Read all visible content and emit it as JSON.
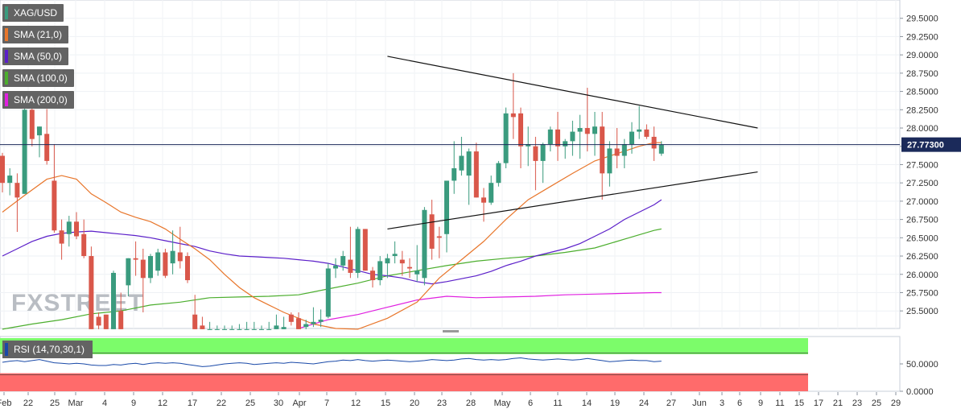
{
  "legend": {
    "symbol": "XAG/USD",
    "sma21": "SMA (21,0)",
    "sma50": "SMA (50,0)",
    "sma100": "SMA (100,0)",
    "sma200": "SMA (200,0)"
  },
  "rsi_label": "RSI (14,70,30,1)",
  "watermark": "FXSTREET",
  "colors": {
    "up": "#3a9b7e",
    "down": "#d9574a",
    "sma21": "#e8762b",
    "sma50": "#5b1fc9",
    "sma100": "#4cae2e",
    "sma200": "#e020e0",
    "rsi": "#1a4aa8",
    "rsi_over": "#7cfc6a",
    "rsi_under": "#ff6b6b",
    "price_line": "#1b2a5a"
  },
  "chart_data": {
    "type": "candlestick",
    "instrument": "XAG/USD",
    "price_label": "27.77300",
    "current_price": 27.773,
    "ylim": [
      25.26,
      29.75
    ],
    "y_ticks": [
      "29.5000",
      "29.2500",
      "29.0000",
      "28.7500",
      "28.5000",
      "28.2500",
      "28.0000",
      "27.7500",
      "27.5000",
      "27.2500",
      "27.0000",
      "26.7500",
      "26.5000",
      "26.2500",
      "26.0000",
      "25.7500",
      "25.5000"
    ],
    "x_ticks": [
      "Feb",
      "22",
      "25",
      "Mar",
      "4",
      "9",
      "12",
      "17",
      "22",
      "25",
      "30",
      "Apr",
      "7",
      "12",
      "15",
      "20",
      "23",
      "28",
      "May",
      "6",
      "11",
      "14",
      "19",
      "24",
      "27",
      "Jun",
      "3",
      "6",
      "9",
      "11",
      "15",
      "17",
      "21",
      "23",
      "25",
      "29"
    ],
    "ohlc": [
      [
        27.62,
        27.66,
        27.12,
        27.25
      ],
      [
        27.25,
        27.45,
        27.08,
        27.35
      ],
      [
        27.25,
        27.38,
        26.58,
        27.05
      ],
      [
        27.1,
        28.28,
        27.1,
        28.25
      ],
      [
        28.25,
        28.3,
        27.75,
        27.85
      ],
      [
        27.9,
        28.02,
        27.6,
        28.02
      ],
      [
        27.92,
        28.26,
        27.5,
        27.55
      ],
      [
        27.28,
        27.78,
        26.57,
        26.6
      ],
      [
        26.6,
        26.75,
        26.2,
        26.42
      ],
      [
        26.55,
        26.8,
        26.38,
        26.72
      ],
      [
        26.72,
        26.85,
        26.48,
        26.52
      ],
      [
        26.55,
        26.75,
        26.22,
        26.25
      ],
      [
        26.25,
        26.38,
        25.25,
        25.25
      ],
      [
        25.42,
        25.48,
        25.25,
        25.3
      ],
      [
        25.45,
        25.45,
        25.25,
        25.25
      ],
      [
        25.25,
        26.05,
        25.25,
        26.02
      ],
      [
        25.5,
        25.75,
        25.25,
        25.25
      ],
      [
        25.85,
        26.22,
        25.7,
        26.22
      ],
      [
        26.22,
        26.45,
        25.98,
        26.2
      ],
      [
        26.2,
        26.35,
        25.48,
        25.95
      ],
      [
        25.95,
        26.28,
        25.88,
        26.25
      ],
      [
        26.05,
        26.35,
        25.98,
        26.3
      ],
      [
        26.3,
        26.35,
        25.95,
        25.98
      ],
      [
        26.15,
        26.6,
        26.0,
        26.32
      ],
      [
        26.3,
        26.65,
        26.08,
        26.18
      ],
      [
        26.25,
        26.3,
        25.88,
        25.92
      ],
      [
        25.45,
        25.72,
        25.25,
        25.25
      ],
      [
        25.3,
        25.42,
        25.25,
        25.25
      ],
      [
        25.25,
        25.35,
        25.25,
        25.25
      ],
      [
        25.25,
        25.3,
        25.25,
        25.25
      ],
      [
        25.25,
        25.3,
        25.25,
        25.25
      ],
      [
        25.25,
        25.3,
        25.25,
        25.25
      ],
      [
        25.25,
        25.32,
        25.25,
        25.25
      ],
      [
        25.25,
        25.35,
        25.25,
        25.25
      ],
      [
        25.25,
        25.35,
        25.25,
        25.25
      ],
      [
        25.25,
        25.3,
        25.25,
        25.25
      ],
      [
        25.25,
        25.35,
        25.25,
        25.25
      ],
      [
        25.25,
        25.45,
        25.25,
        25.3
      ],
      [
        25.25,
        25.42,
        25.25,
        25.28
      ],
      [
        25.45,
        25.48,
        25.3,
        25.35
      ],
      [
        25.4,
        25.48,
        25.25,
        25.25
      ],
      [
        25.28,
        25.38,
        25.25,
        25.32
      ],
      [
        25.32,
        25.55,
        25.28,
        25.35
      ],
      [
        25.35,
        25.52,
        25.28,
        25.38
      ],
      [
        25.42,
        26.15,
        25.4,
        26.08
      ],
      [
        26.08,
        26.22,
        25.95,
        26.12
      ],
      [
        26.12,
        26.32,
        26.05,
        26.25
      ],
      [
        26.2,
        26.65,
        25.95,
        26.02
      ],
      [
        26.02,
        26.65,
        25.95,
        26.62
      ],
      [
        26.62,
        26.62,
        26.05,
        26.05
      ],
      [
        26.05,
        26.1,
        25.82,
        25.92
      ],
      [
        25.92,
        26.25,
        25.85,
        26.18
      ],
      [
        26.15,
        26.28,
        25.95,
        26.22
      ],
      [
        26.25,
        26.45,
        26.15,
        26.28
      ],
      [
        26.2,
        26.32,
        25.98,
        26.15
      ],
      [
        26.1,
        26.22,
        25.95,
        26.08
      ],
      [
        26.0,
        26.4,
        25.9,
        26.05
      ],
      [
        25.95,
        26.92,
        25.85,
        26.88
      ],
      [
        26.82,
        27.02,
        26.2,
        26.35
      ],
      [
        26.52,
        26.65,
        26.22,
        26.5
      ],
      [
        26.55,
        27.28,
        26.3,
        27.28
      ],
      [
        27.28,
        27.82,
        27.1,
        27.45
      ],
      [
        27.42,
        27.88,
        27.35,
        27.62
      ],
      [
        27.35,
        27.72,
        26.95,
        27.68
      ],
      [
        27.68,
        27.8,
        27.05,
        27.05
      ],
      [
        27.05,
        27.18,
        26.72,
        26.98
      ],
      [
        26.98,
        27.35,
        26.95,
        27.25
      ],
      [
        27.25,
        27.55,
        27.2,
        27.52
      ],
      [
        27.52,
        28.28,
        27.45,
        28.2
      ],
      [
        28.2,
        28.75,
        27.85,
        28.15
      ],
      [
        28.2,
        28.28,
        27.45,
        27.75
      ],
      [
        27.75,
        28.02,
        27.48,
        27.78
      ],
      [
        27.75,
        27.88,
        27.15,
        27.55
      ],
      [
        27.55,
        27.8,
        27.25,
        27.78
      ],
      [
        27.78,
        28.02,
        27.68,
        27.98
      ],
      [
        27.98,
        28.22,
        27.55,
        27.75
      ],
      [
        27.75,
        27.85,
        27.58,
        27.82
      ],
      [
        27.82,
        28.1,
        27.62,
        27.95
      ],
      [
        27.95,
        28.18,
        27.58,
        28.0
      ],
      [
        28.0,
        28.55,
        27.68,
        27.92
      ],
      [
        27.92,
        28.22,
        27.62,
        28.02
      ],
      [
        28.02,
        28.22,
        27.02,
        27.38
      ],
      [
        27.38,
        27.82,
        27.2,
        27.72
      ],
      [
        27.72,
        28.0,
        27.45,
        27.62
      ],
      [
        27.62,
        27.85,
        27.45,
        27.78
      ],
      [
        27.78,
        28.08,
        27.65,
        27.95
      ],
      [
        27.95,
        28.3,
        27.85,
        27.98
      ],
      [
        27.98,
        28.05,
        27.85,
        27.88
      ],
      [
        27.88,
        28.02,
        27.55,
        27.72
      ],
      [
        27.65,
        27.82,
        27.62,
        27.77
      ]
    ],
    "sma21": [
      [
        0,
        26.85
      ],
      [
        3,
        27.08
      ],
      [
        6,
        27.3
      ],
      [
        8,
        27.35
      ],
      [
        10,
        27.3
      ],
      [
        12,
        27.1
      ],
      [
        14,
        26.98
      ],
      [
        16,
        26.85
      ],
      [
        18,
        26.78
      ],
      [
        20,
        26.72
      ],
      [
        22,
        26.62
      ],
      [
        24,
        26.48
      ],
      [
        26,
        26.35
      ],
      [
        28,
        26.2
      ],
      [
        30,
        26.0
      ],
      [
        32,
        25.82
      ],
      [
        34,
        25.68
      ],
      [
        36,
        25.58
      ],
      [
        38,
        25.48
      ],
      [
        40,
        25.4
      ],
      [
        42,
        25.32
      ],
      [
        45,
        25.26
      ],
      [
        48,
        25.25
      ],
      [
        52,
        25.4
      ],
      [
        56,
        25.62
      ],
      [
        59,
        25.95
      ],
      [
        62,
        26.2
      ],
      [
        65,
        26.45
      ],
      [
        68,
        26.75
      ],
      [
        71,
        27.02
      ],
      [
        74,
        27.2
      ],
      [
        77,
        27.38
      ],
      [
        80,
        27.55
      ],
      [
        83,
        27.65
      ],
      [
        86,
        27.75
      ],
      [
        88,
        27.8
      ],
      [
        89,
        27.8
      ]
    ],
    "sma50": [
      [
        0,
        26.25
      ],
      [
        2,
        26.35
      ],
      [
        4,
        26.45
      ],
      [
        6,
        26.52
      ],
      [
        8,
        26.56
      ],
      [
        10,
        26.58
      ],
      [
        12,
        26.59
      ],
      [
        14,
        26.57
      ],
      [
        16,
        26.55
      ],
      [
        18,
        26.53
      ],
      [
        20,
        26.5
      ],
      [
        22,
        26.46
      ],
      [
        24,
        26.42
      ],
      [
        26,
        26.38
      ],
      [
        28,
        26.32
      ],
      [
        30,
        26.28
      ],
      [
        32,
        26.25
      ],
      [
        34,
        26.24
      ],
      [
        36,
        26.23
      ],
      [
        38,
        26.22
      ],
      [
        40,
        26.2
      ],
      [
        42,
        26.18
      ],
      [
        44,
        26.15
      ],
      [
        46,
        26.1
      ],
      [
        48,
        26.05
      ],
      [
        50,
        26.0
      ],
      [
        52,
        25.98
      ],
      [
        54,
        25.95
      ],
      [
        56,
        25.9
      ],
      [
        58,
        25.87
      ],
      [
        60,
        25.9
      ],
      [
        62,
        25.94
      ],
      [
        64,
        25.98
      ],
      [
        66,
        26.04
      ],
      [
        68,
        26.12
      ],
      [
        70,
        26.18
      ],
      [
        72,
        26.25
      ],
      [
        74,
        26.3
      ],
      [
        76,
        26.35
      ],
      [
        78,
        26.42
      ],
      [
        80,
        26.52
      ],
      [
        82,
        26.62
      ],
      [
        84,
        26.75
      ],
      [
        86,
        26.85
      ],
      [
        88,
        26.95
      ],
      [
        89,
        27.02
      ]
    ],
    "sma100": [
      [
        0,
        25.25
      ],
      [
        4,
        25.32
      ],
      [
        8,
        25.38
      ],
      [
        12,
        25.46
      ],
      [
        16,
        25.5
      ],
      [
        20,
        25.58
      ],
      [
        24,
        25.62
      ],
      [
        28,
        25.68
      ],
      [
        32,
        25.69
      ],
      [
        36,
        25.7
      ],
      [
        40,
        25.72
      ],
      [
        44,
        25.8
      ],
      [
        48,
        25.88
      ],
      [
        52,
        25.98
      ],
      [
        56,
        26.05
      ],
      [
        60,
        26.12
      ],
      [
        64,
        26.18
      ],
      [
        68,
        26.22
      ],
      [
        72,
        26.25
      ],
      [
        76,
        26.3
      ],
      [
        80,
        26.36
      ],
      [
        84,
        26.48
      ],
      [
        88,
        26.6
      ],
      [
        89,
        26.62
      ]
    ],
    "sma200": [
      [
        40,
        25.26
      ],
      [
        44,
        25.38
      ],
      [
        48,
        25.45
      ],
      [
        52,
        25.55
      ],
      [
        56,
        25.65
      ],
      [
        60,
        25.7
      ],
      [
        64,
        25.68
      ],
      [
        68,
        25.69
      ],
      [
        72,
        25.7
      ],
      [
        76,
        25.72
      ],
      [
        80,
        25.73
      ],
      [
        84,
        25.74
      ],
      [
        88,
        25.75
      ],
      [
        89,
        25.75
      ]
    ],
    "trendlines": [
      {
        "from": [
          52,
          28.98
        ],
        "to": [
          102,
          28.0
        ]
      },
      {
        "from": [
          52,
          26.62
        ],
        "to": [
          102,
          27.4
        ]
      }
    ],
    "rsi": {
      "ylim": [
        0,
        100
      ],
      "overbought": 70,
      "oversold": 30,
      "ticks": [
        "50.0000",
        "0.0000"
      ],
      "values": [
        53,
        55,
        56,
        54,
        56,
        58,
        55,
        52,
        51,
        50,
        51,
        50,
        48,
        47,
        47,
        49,
        48,
        50,
        51,
        49,
        51,
        52,
        51,
        52,
        51,
        49,
        47,
        45,
        46,
        48,
        50,
        51,
        52,
        51,
        49,
        50,
        51,
        52,
        51,
        53,
        52,
        51,
        50,
        52,
        54,
        55,
        57,
        56,
        58,
        56,
        55,
        56,
        57,
        56,
        55,
        54,
        55,
        56,
        58,
        57,
        56,
        57,
        59,
        60,
        58,
        57,
        58,
        57,
        58,
        60,
        61,
        59,
        58,
        57,
        58,
        59,
        58,
        57,
        58,
        60,
        58,
        56,
        54,
        55,
        56,
        57,
        56,
        56,
        54,
        55
      ]
    }
  }
}
